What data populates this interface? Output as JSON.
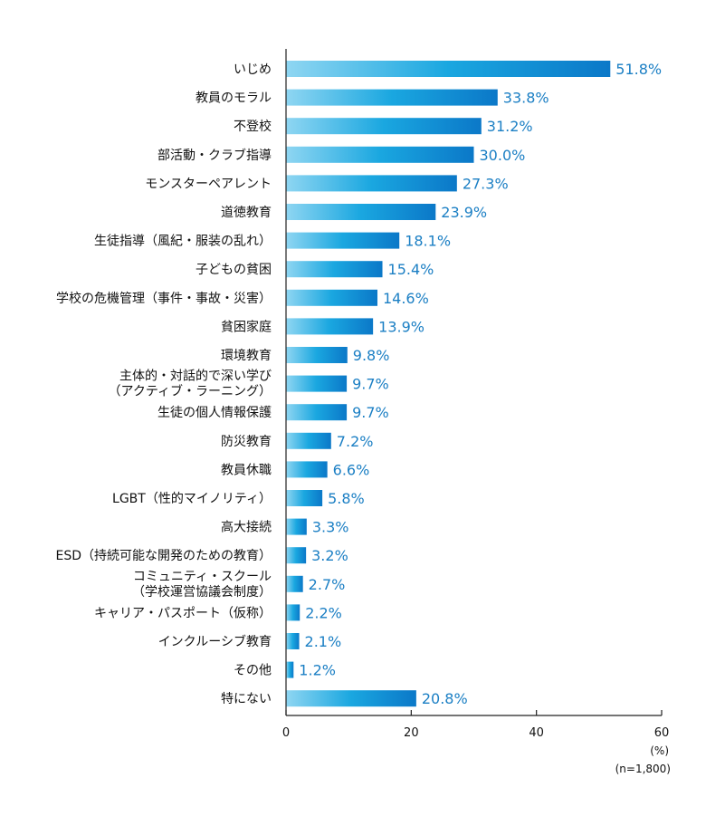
{
  "chart_data": {
    "type": "bar",
    "orientation": "horizontal",
    "categories": [
      [
        "いじめ"
      ],
      [
        "教員のモラル"
      ],
      [
        "不登校"
      ],
      [
        "部活動・クラブ指導"
      ],
      [
        "モンスターペアレント"
      ],
      [
        "道徳教育"
      ],
      [
        "生徒指導（風紀・服装の乱れ）"
      ],
      [
        "子どもの貧困"
      ],
      [
        "学校の危機管理（事件・事故・災害）"
      ],
      [
        "貧困家庭"
      ],
      [
        "環境教育"
      ],
      [
        "主体的・対話的で深い学び",
        "（アクティブ・ラーニング）"
      ],
      [
        "生徒の個人情報保護"
      ],
      [
        "防災教育"
      ],
      [
        "教員休職"
      ],
      [
        "LGBT（性的マイノリティ）"
      ],
      [
        "高大接続"
      ],
      [
        "ESD（持続可能な開発のための教育）"
      ],
      [
        "コミュニティ・スクール",
        "（学校運営協議会制度）"
      ],
      [
        "キャリア・パスポート（仮称）"
      ],
      [
        "インクルーシブ教育"
      ],
      [
        "その他"
      ],
      [
        "特にない"
      ]
    ],
    "values": [
      51.8,
      33.8,
      31.2,
      30.0,
      27.3,
      23.9,
      18.1,
      15.4,
      14.6,
      13.9,
      9.8,
      9.7,
      9.7,
      7.2,
      6.6,
      5.8,
      3.3,
      3.2,
      2.7,
      2.2,
      2.1,
      1.2,
      20.8
    ],
    "value_labels": [
      "51.8%",
      "33.8%",
      "31.2%",
      "30.0%",
      "27.3%",
      "23.9%",
      "18.1%",
      "15.4%",
      "14.6%",
      "13.9%",
      "9.8%",
      "9.7%",
      "9.7%",
      "7.2%",
      "6.6%",
      "5.8%",
      "3.3%",
      "3.2%",
      "2.7%",
      "2.2%",
      "2.1%",
      "1.2%",
      "20.8%"
    ],
    "xlim": [
      0,
      60
    ],
    "xticks": [
      "0",
      "20",
      "40",
      "60"
    ],
    "unit_label": "(%)",
    "sample_note": "(n=1,800)",
    "grid": false,
    "colors": {
      "bar_light": "#8fd6f2",
      "bar_mid": "#1aa7e0",
      "bar_dark": "#0b78c8",
      "value_text": "#1b7fc4",
      "axis": "#222222"
    }
  }
}
